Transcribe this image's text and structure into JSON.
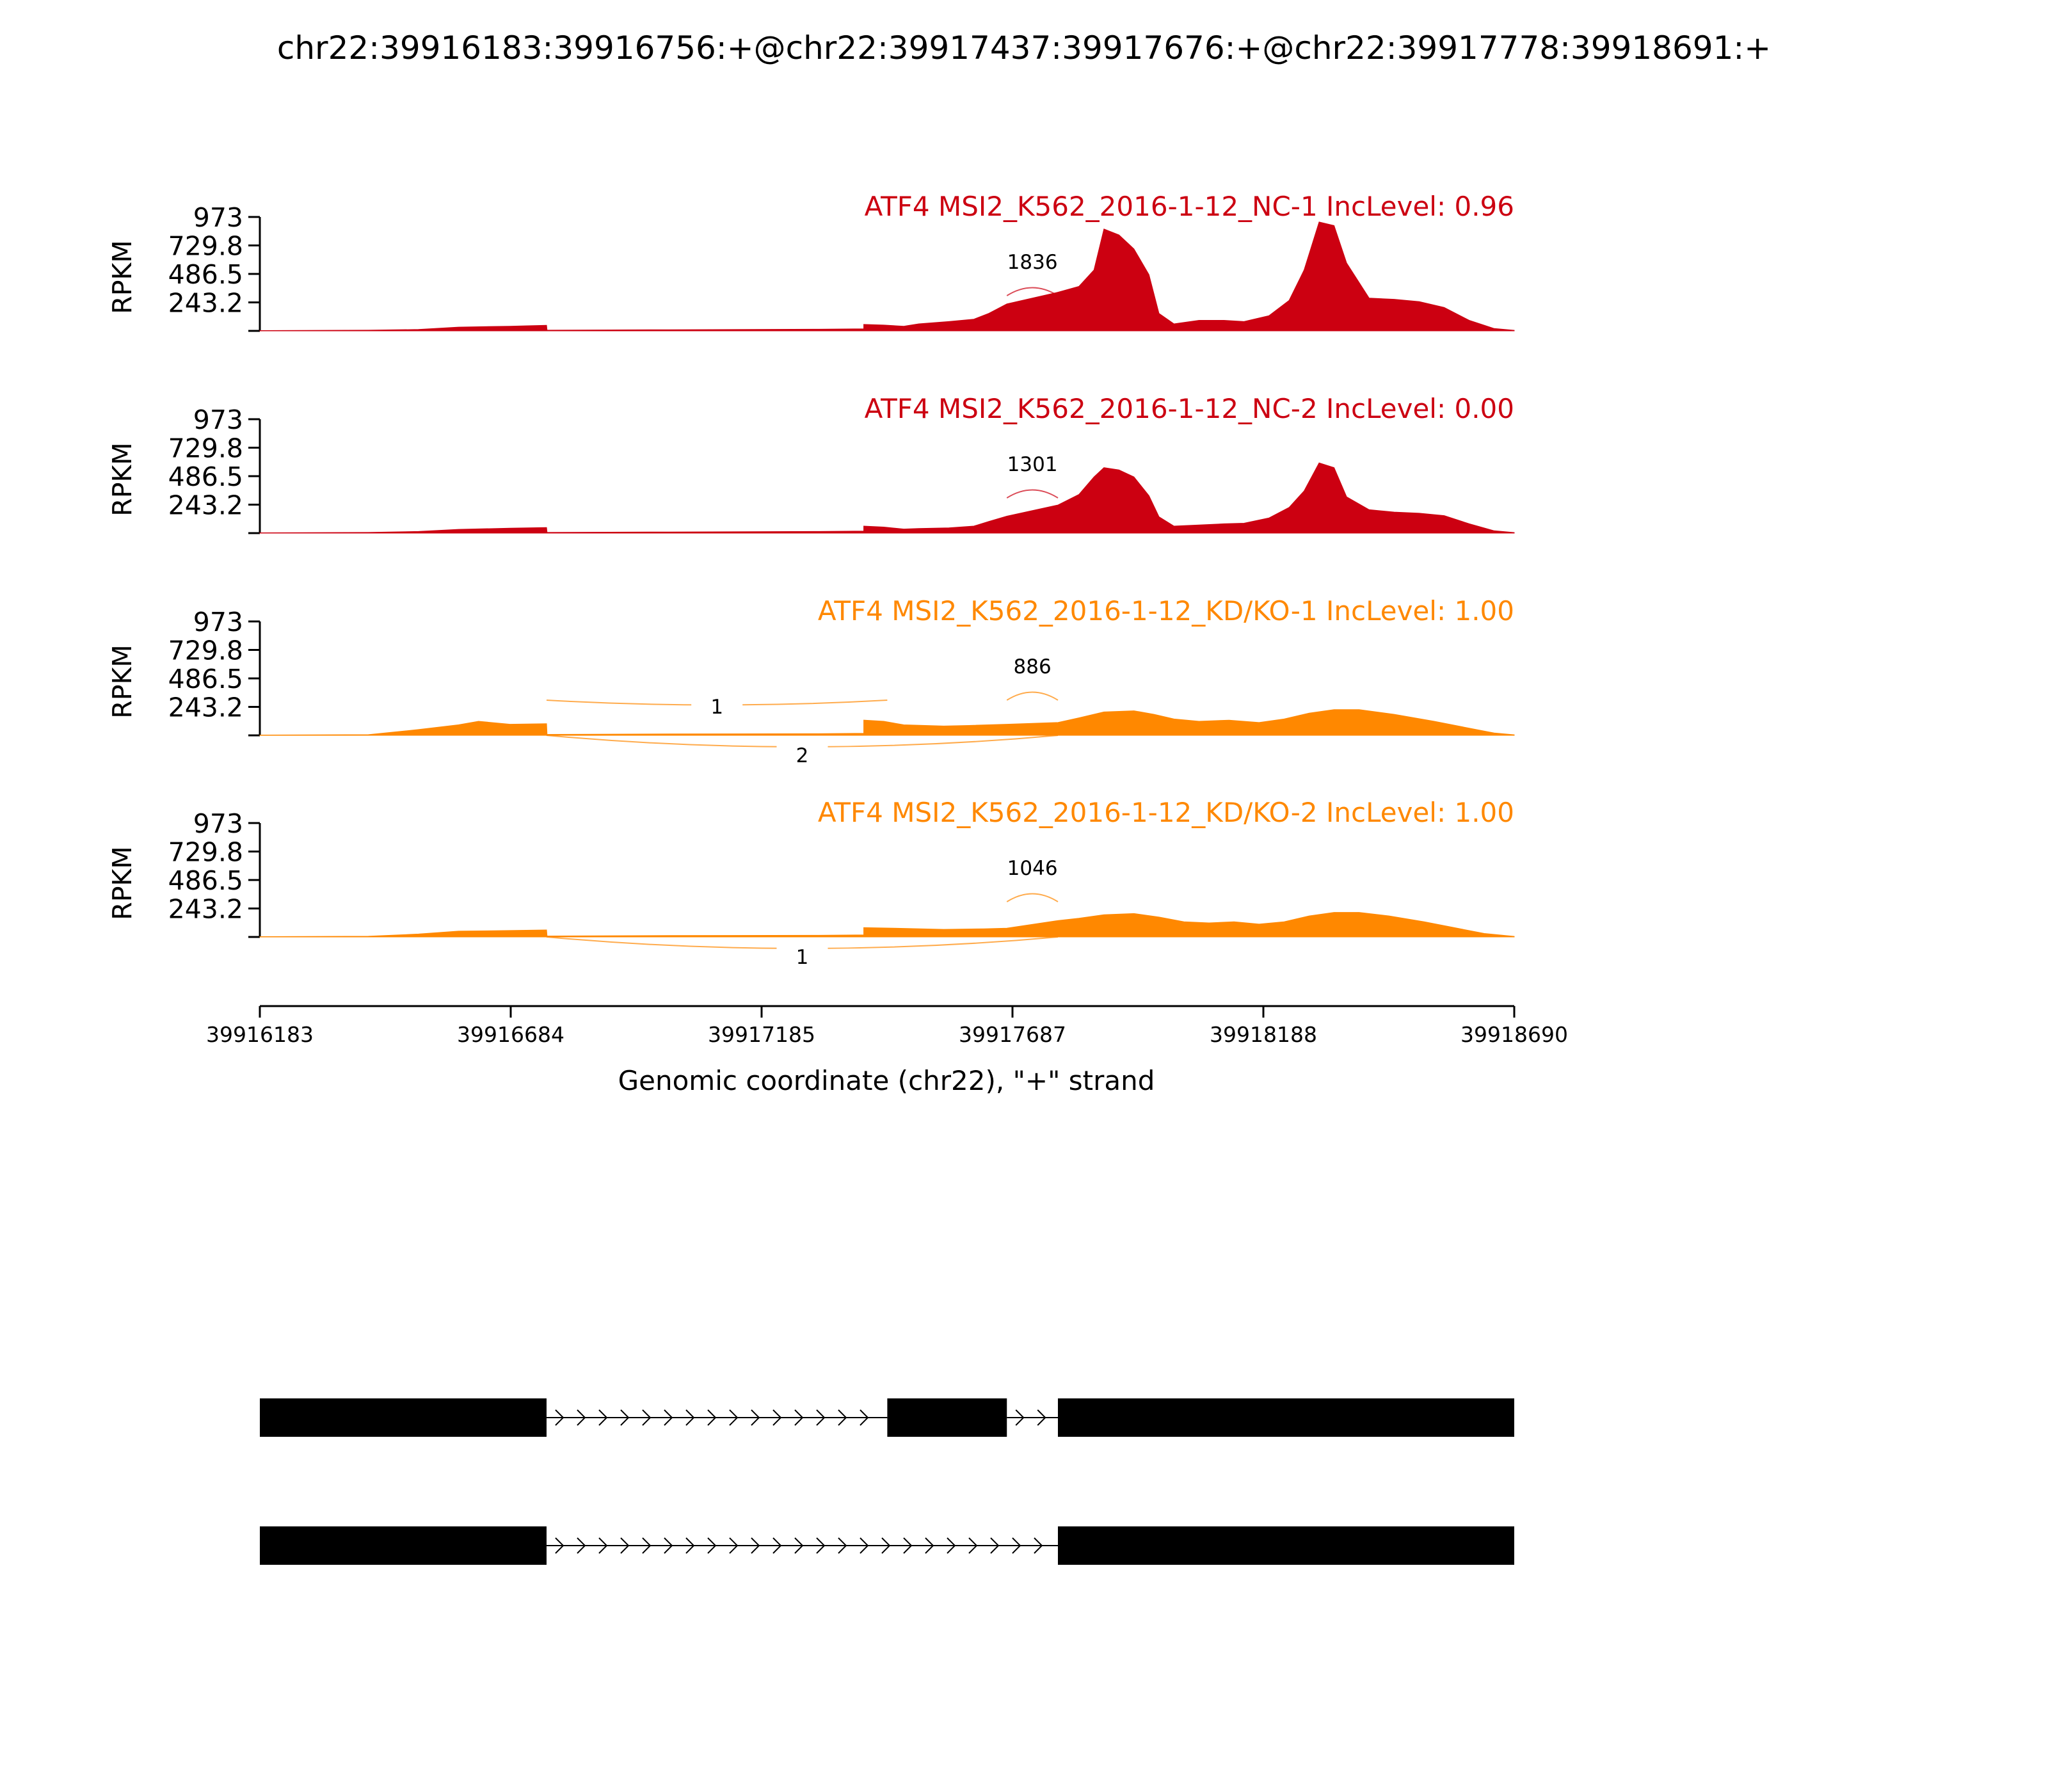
{
  "title": "chr22:39916183:39916756:+@chr22:39917437:39917676:+@chr22:39917778:39918691:+",
  "xlabel": "Genomic coordinate (chr22), \"+\" strand",
  "ylabel": "RPKM",
  "colors": {
    "nc": "#cc0011",
    "kd": "#ff8800",
    "axis": "#000000",
    "exon": "#000000"
  },
  "chart_data": {
    "type": "area",
    "xlim": [
      39916183,
      39918690
    ],
    "x_ticks": [
      "39916183",
      "39916684",
      "39917185",
      "39917687",
      "39918188",
      "39918690"
    ],
    "y_ticks": [
      "973",
      "729.8",
      "486.5",
      "243.2"
    ],
    "ylim": [
      0,
      973
    ],
    "grid": false,
    "tracks": [
      {
        "label": "ATF4 MSI2_K562_2016-1-12_NC-1 IncLevel: 0.96",
        "group": "nc",
        "junctions": [
          {
            "count": "1836",
            "from": 39917676,
            "to": 39917778,
            "side": "above"
          }
        ],
        "coverage": [
          [
            39916183,
            3
          ],
          [
            39916400,
            6
          ],
          [
            39916500,
            12
          ],
          [
            39916580,
            32
          ],
          [
            39916683,
            40
          ],
          [
            39916756,
            48
          ],
          [
            39916757,
            6
          ],
          [
            39917000,
            10
          ],
          [
            39917300,
            14
          ],
          [
            39917390,
            18
          ],
          [
            39917390,
            55
          ],
          [
            39917430,
            50
          ],
          [
            39917470,
            40
          ],
          [
            39917500,
            60
          ],
          [
            39917560,
            80
          ],
          [
            39917610,
            100
          ],
          [
            39917640,
            150
          ],
          [
            39917676,
            230
          ],
          [
            39917778,
            330
          ],
          [
            39917820,
            380
          ],
          [
            39917850,
            520
          ],
          [
            39917870,
            870
          ],
          [
            39917900,
            820
          ],
          [
            39917930,
            700
          ],
          [
            39917960,
            480
          ],
          [
            39917980,
            150
          ],
          [
            39918010,
            60
          ],
          [
            39918060,
            90
          ],
          [
            39918110,
            90
          ],
          [
            39918150,
            80
          ],
          [
            39918200,
            130
          ],
          [
            39918240,
            260
          ],
          [
            39918270,
            520
          ],
          [
            39918300,
            930
          ],
          [
            39918330,
            900
          ],
          [
            39918355,
            580
          ],
          [
            39918400,
            280
          ],
          [
            39918450,
            270
          ],
          [
            39918500,
            250
          ],
          [
            39918550,
            200
          ],
          [
            39918600,
            90
          ],
          [
            39918650,
            20
          ],
          [
            39918690,
            5
          ]
        ]
      },
      {
        "label": "ATF4 MSI2_K562_2016-1-12_NC-2 IncLevel: 0.00",
        "group": "nc",
        "junctions": [
          {
            "count": "1301",
            "from": 39917676,
            "to": 39917778,
            "side": "above"
          }
        ],
        "coverage": [
          [
            39916183,
            3
          ],
          [
            39916400,
            6
          ],
          [
            39916500,
            14
          ],
          [
            39916580,
            32
          ],
          [
            39916683,
            42
          ],
          [
            39916756,
            48
          ],
          [
            39916757,
            6
          ],
          [
            39917000,
            10
          ],
          [
            39917300,
            14
          ],
          [
            39917390,
            18
          ],
          [
            39917390,
            60
          ],
          [
            39917430,
            52
          ],
          [
            39917470,
            35
          ],
          [
            39917500,
            40
          ],
          [
            39917560,
            45
          ],
          [
            39917610,
            60
          ],
          [
            39917640,
            100
          ],
          [
            39917676,
            145
          ],
          [
            39917778,
            240
          ],
          [
            39917820,
            330
          ],
          [
            39917850,
            480
          ],
          [
            39917870,
            560
          ],
          [
            39917900,
            540
          ],
          [
            39917930,
            480
          ],
          [
            39917960,
            320
          ],
          [
            39917980,
            140
          ],
          [
            39918010,
            60
          ],
          [
            39918060,
            70
          ],
          [
            39918110,
            80
          ],
          [
            39918150,
            85
          ],
          [
            39918200,
            130
          ],
          [
            39918240,
            220
          ],
          [
            39918270,
            360
          ],
          [
            39918300,
            600
          ],
          [
            39918330,
            560
          ],
          [
            39918355,
            310
          ],
          [
            39918400,
            200
          ],
          [
            39918450,
            180
          ],
          [
            39918500,
            170
          ],
          [
            39918550,
            150
          ],
          [
            39918600,
            80
          ],
          [
            39918650,
            20
          ],
          [
            39918690,
            5
          ]
        ]
      },
      {
        "label": "ATF4 MSI2_K562_2016-1-12_KD/KO-1 IncLevel: 1.00",
        "group": "kd",
        "junctions": [
          {
            "count": "1",
            "from": 39916756,
            "to": 39917437,
            "side": "above"
          },
          {
            "count": "2",
            "from": 39916756,
            "to": 39917778,
            "side": "below"
          },
          {
            "count": "886",
            "from": 39917676,
            "to": 39917778,
            "side": "above"
          }
        ],
        "coverage": [
          [
            39916183,
            3
          ],
          [
            39916400,
            6
          ],
          [
            39916500,
            50
          ],
          [
            39916580,
            90
          ],
          [
            39916620,
            120
          ],
          [
            39916683,
            95
          ],
          [
            39916756,
            100
          ],
          [
            39916757,
            8
          ],
          [
            39917000,
            12
          ],
          [
            39917300,
            14
          ],
          [
            39917390,
            18
          ],
          [
            39917390,
            130
          ],
          [
            39917430,
            120
          ],
          [
            39917470,
            90
          ],
          [
            39917550,
            80
          ],
          [
            39917600,
            85
          ],
          [
            39917676,
            95
          ],
          [
            39917778,
            110
          ],
          [
            39917820,
            150
          ],
          [
            39917870,
            200
          ],
          [
            39917930,
            210
          ],
          [
            39917970,
            180
          ],
          [
            39918010,
            140
          ],
          [
            39918060,
            120
          ],
          [
            39918120,
            130
          ],
          [
            39918180,
            110
          ],
          [
            39918230,
            140
          ],
          [
            39918280,
            190
          ],
          [
            39918330,
            220
          ],
          [
            39918380,
            220
          ],
          [
            39918450,
            180
          ],
          [
            39918530,
            120
          ],
          [
            39918590,
            70
          ],
          [
            39918650,
            20
          ],
          [
            39918690,
            5
          ]
        ]
      },
      {
        "label": "ATF4 MSI2_K562_2016-1-12_KD/KO-2 IncLevel: 1.00",
        "group": "kd",
        "junctions": [
          {
            "count": "1",
            "from": 39916756,
            "to": 39917778,
            "side": "below"
          },
          {
            "count": "1046",
            "from": 39917676,
            "to": 39917778,
            "side": "above"
          }
        ],
        "coverage": [
          [
            39916183,
            3
          ],
          [
            39916400,
            6
          ],
          [
            39916500,
            25
          ],
          [
            39916580,
            50
          ],
          [
            39916683,
            55
          ],
          [
            39916756,
            60
          ],
          [
            39916757,
            8
          ],
          [
            39917000,
            12
          ],
          [
            39917300,
            14
          ],
          [
            39917390,
            18
          ],
          [
            39917390,
            80
          ],
          [
            39917450,
            75
          ],
          [
            39917550,
            65
          ],
          [
            39917630,
            70
          ],
          [
            39917676,
            75
          ],
          [
            39917778,
            140
          ],
          [
            39917820,
            160
          ],
          [
            39917870,
            190
          ],
          [
            39917930,
            200
          ],
          [
            39917980,
            170
          ],
          [
            39918030,
            130
          ],
          [
            39918080,
            120
          ],
          [
            39918130,
            130
          ],
          [
            39918180,
            110
          ],
          [
            39918230,
            130
          ],
          [
            39918280,
            180
          ],
          [
            39918330,
            210
          ],
          [
            39918380,
            210
          ],
          [
            39918440,
            180
          ],
          [
            39918510,
            130
          ],
          [
            39918570,
            80
          ],
          [
            39918630,
            30
          ],
          [
            39918690,
            5
          ]
        ]
      }
    ],
    "isoforms": [
      {
        "exons": [
          [
            39916183,
            39916756
          ],
          [
            39917437,
            39917676
          ],
          [
            39917778,
            39918690
          ]
        ]
      },
      {
        "exons": [
          [
            39916183,
            39916756
          ],
          [
            39917778,
            39918690
          ]
        ]
      }
    ]
  }
}
